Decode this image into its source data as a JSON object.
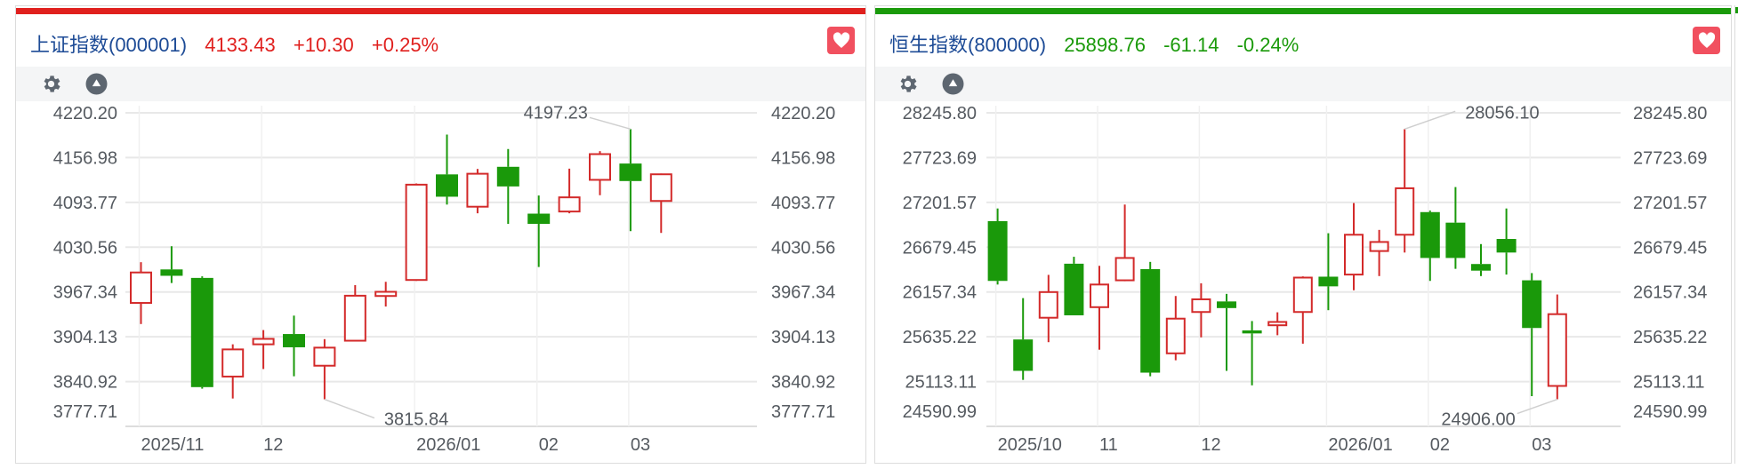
{
  "colors": {
    "up": "#d32a2a",
    "down": "#1a990a",
    "up_text": "#e0201e",
    "down_text": "#1a9a0a",
    "name": "#1d4b96",
    "grid": "#e8e8e8",
    "axis_text": "#555a60"
  },
  "panels": [
    {
      "name": "上证指数(000001)",
      "price": "4133.43",
      "change": "+10.30",
      "pct": "+0.25%",
      "direction": "up",
      "favorite_icon": "heart-icon",
      "toolbar_icons": [
        "gear-icon",
        "triangle-up-circle-icon"
      ]
    },
    {
      "name": "恒生指数(800000)",
      "price": "25898.76",
      "change": "-61.14",
      "pct": "-0.24%",
      "direction": "down",
      "favorite_icon": "heart-icon",
      "toolbar_icons": [
        "gear-icon",
        "triangle-up-circle-icon"
      ]
    }
  ],
  "chart_data": [
    {
      "type": "candlestick",
      "ylim": [
        3777.71,
        4220.2
      ],
      "yticks": [
        "4220.20",
        "4156.98",
        "4093.77",
        "4030.56",
        "3967.34",
        "3904.13",
        "3840.92",
        "3777.71"
      ],
      "xlabels": [
        {
          "text": "2025/11",
          "at_index": 0
        },
        {
          "text": "12",
          "at_index": 4
        },
        {
          "text": "2026/01",
          "at_index": 9
        },
        {
          "text": "02",
          "at_index": 13
        },
        {
          "text": "03",
          "at_index": 16
        }
      ],
      "annotations": {
        "max": {
          "text": "4197.23",
          "at_index": 16
        },
        "min": {
          "text": "3815.84",
          "at_index": 6
        }
      },
      "grid": true,
      "candles": [
        [
          3951.9,
          4009.4,
          3922.1,
          3994.9
        ],
        [
          3999.2,
          4031.9,
          3980.0,
          3990.2
        ],
        [
          3987.2,
          3989.4,
          3830.9,
          3833.1
        ],
        [
          3848.0,
          3893.5,
          3817.0,
          3886.3
        ],
        [
          3893.5,
          3913.6,
          3858.6,
          3901.2
        ],
        [
          3908.0,
          3934.0,
          3848.4,
          3889.3
        ],
        [
          3863.3,
          3900.8,
          3815.84,
          3888.8
        ],
        [
          3898.6,
          3977.0,
          3897.8,
          3962.1
        ],
        [
          3961.7,
          3981.7,
          3946.8,
          3967.6
        ],
        [
          3984.3,
          4120.5,
          3983.0,
          4118.8
        ],
        [
          4133.3,
          4189.5,
          4090.7,
          4101.8
        ],
        [
          4087.7,
          4141.0,
          4078.4,
          4134.2
        ],
        [
          4144.0,
          4169.1,
          4063.5,
          4116.3
        ],
        [
          4077.9,
          4103.5,
          4002.6,
          4063.5
        ],
        [
          4080.9,
          4141.4,
          4078.4,
          4100.9
        ],
        [
          4125.6,
          4166.1,
          4103.9,
          4161.9
        ],
        [
          4148.6,
          4197.23,
          4053.2,
          4123.9
        ],
        [
          4095.8,
          4134.5,
          4050.7,
          4133.43
        ]
      ]
    },
    {
      "type": "candlestick",
      "ylim": [
        24590.99,
        28245.8
      ],
      "yticks": [
        "28245.80",
        "27723.69",
        "27201.57",
        "26679.45",
        "26157.34",
        "25635.22",
        "25113.11",
        "24590.99"
      ],
      "xlabels": [
        {
          "text": "2025/10",
          "at_index": 0
        },
        {
          "text": "11",
          "at_index": 4
        },
        {
          "text": "12",
          "at_index": 8
        },
        {
          "text": "2026/01",
          "at_index": 13
        },
        {
          "text": "02",
          "at_index": 17
        },
        {
          "text": "03",
          "at_index": 21
        }
      ],
      "annotations": {
        "max": {
          "text": "28056.10",
          "at_index": 16
        },
        "min": {
          "text": "24906.00",
          "at_index": 22
        }
      },
      "grid": true,
      "candles": [
        [
          26982.9,
          27130.7,
          26244.2,
          26286.4
        ],
        [
          25604.0,
          26085.9,
          25132.6,
          25238.2
        ],
        [
          25857.3,
          26356.8,
          25572.3,
          26156.3
        ],
        [
          26486.9,
          26567.8,
          25885.4,
          25885.4
        ],
        [
          25980.4,
          26462.3,
          25484.4,
          26244.2
        ],
        [
          26293.5,
          27176.4,
          26283.0,
          26553.8
        ],
        [
          26423.6,
          26508.1,
          25174.8,
          25217.1
        ],
        [
          25442.2,
          26110.6,
          25361.3,
          25846.7
        ],
        [
          25924.1,
          26258.3,
          25628.6,
          26071.9
        ],
        [
          26047.2,
          26135.2,
          25238.2,
          25969.9
        ],
        [
          25709.5,
          25818.6,
          25069.3,
          25674.4
        ],
        [
          25769.3,
          25920.6,
          25653.3,
          25808.0
        ],
        [
          25924.1,
          26339.2,
          25554.8,
          26325.1
        ],
        [
          26335.7,
          26842.2,
          25945.2,
          26223.1
        ],
        [
          26360.3,
          27194.0,
          26177.4,
          26824.6
        ],
        [
          26634.7,
          26880.9,
          26342.7,
          26740.2
        ],
        [
          26824.6,
          28056.1,
          26617.1,
          27366.4
        ],
        [
          27088.5,
          27106.1,
          26286.4,
          26553.8
        ],
        [
          26965.4,
          27380.4,
          26427.2,
          26553.8
        ],
        [
          26483.4,
          26715.6,
          26342.7,
          26406.0
        ],
        [
          26775.4,
          27130.7,
          26360.3,
          26617.1
        ],
        [
          26293.5,
          26377.9,
          24942.7,
          25737.7
        ],
        [
          25062.3,
          26128.1,
          24906.0,
          25898.76
        ]
      ]
    }
  ]
}
